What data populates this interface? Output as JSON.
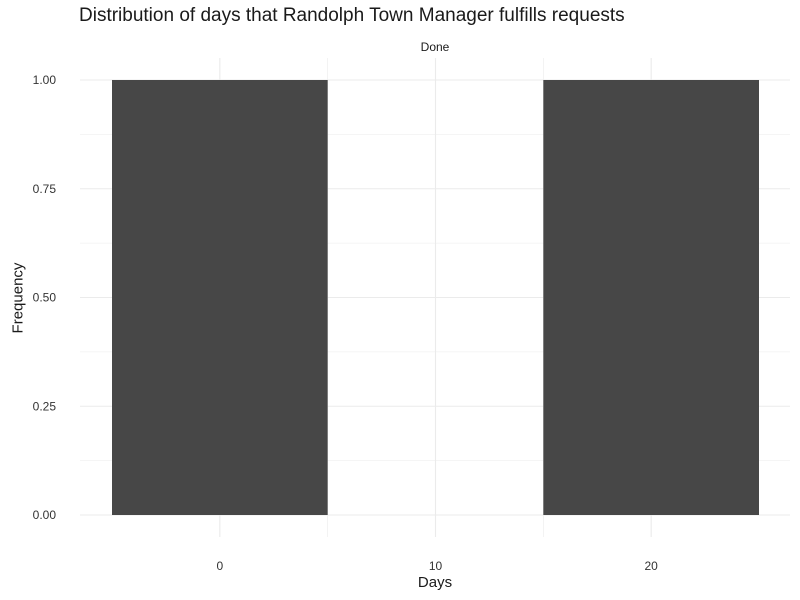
{
  "chart_data": {
    "type": "bar",
    "title": "Distribution of days that Randolph Town Manager fulfills requests",
    "facet_label": "Done",
    "xlabel": "Days",
    "ylabel": "Frequency",
    "bars": [
      {
        "x_start": -5,
        "x_end": 5,
        "value": 1
      },
      {
        "x_start": 15,
        "x_end": 25,
        "value": 1
      }
    ],
    "xlim": [
      -5,
      25
    ],
    "ylim": [
      0,
      1
    ],
    "x_ticks": [
      0,
      10,
      20
    ],
    "x_tick_labels": [
      "0",
      "10",
      "20"
    ],
    "y_ticks": [
      0,
      0.25,
      0.5,
      0.75,
      1
    ],
    "y_tick_labels": [
      "0.00",
      "0.25",
      "0.50",
      "0.75",
      "1.00"
    ],
    "grid": true,
    "bar_color": "#474747",
    "grid_color": "#ebebeb"
  }
}
